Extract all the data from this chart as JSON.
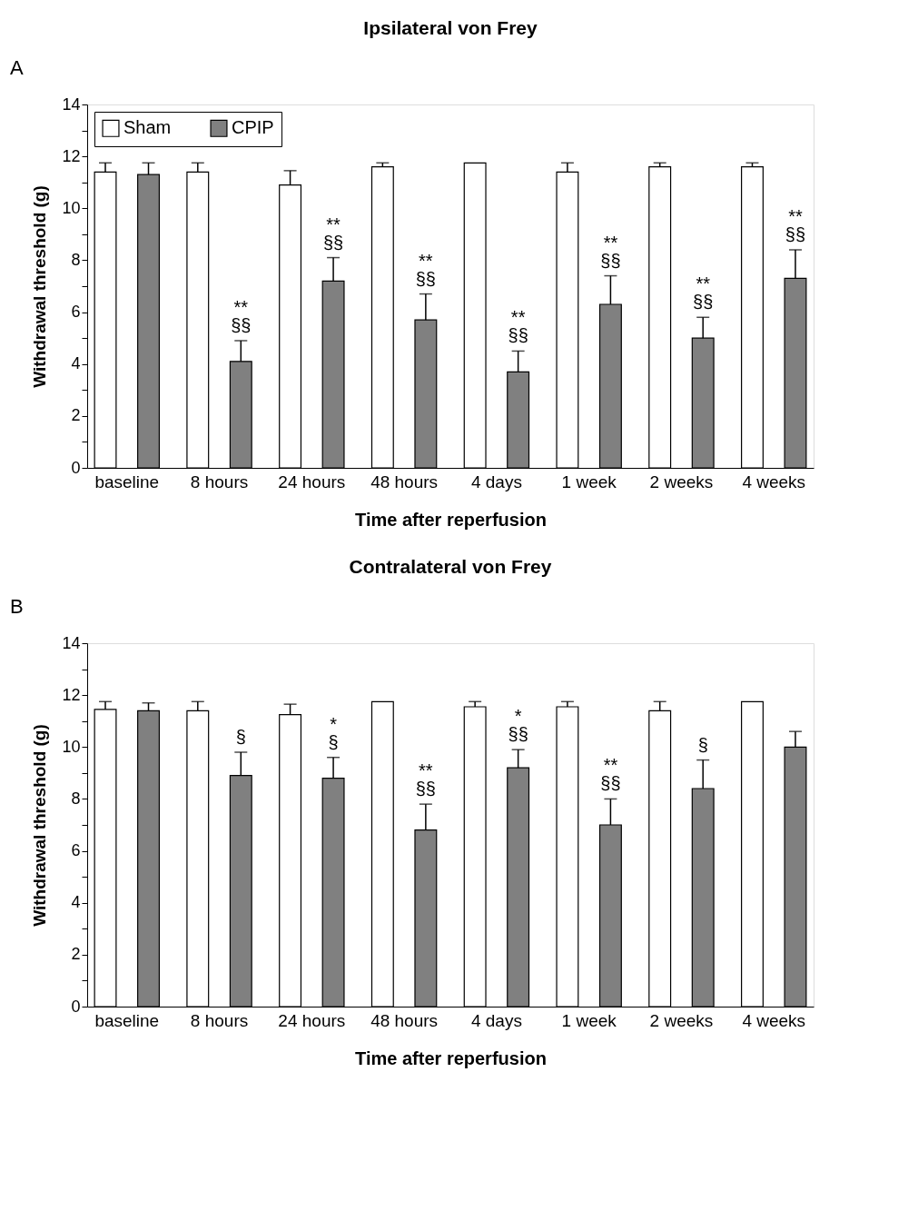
{
  "chart_data": [
    {
      "type": "bar",
      "title": "Ipsilateral von Frey",
      "xlabel": "Time after reperfusion",
      "ylabel": "Withdrawal threshold (g)",
      "categories": [
        "baseline",
        "8 hours",
        "24 hours",
        "48 hours",
        "4 days",
        "1 week",
        "2 weeks",
        "4 weeks"
      ],
      "series": [
        {
          "name": "Sham",
          "color": "#ffffff",
          "values": [
            11.4,
            11.4,
            10.9,
            11.6,
            11.75,
            11.4,
            11.6,
            11.6
          ],
          "errors": [
            [
              11.4,
              11.75
            ],
            [
              11.4,
              11.75
            ],
            [
              10.9,
              11.45
            ],
            [
              11.6,
              11.75
            ],
            null,
            [
              11.4,
              11.75
            ],
            [
              11.6,
              11.75
            ],
            [
              11.6,
              11.75
            ]
          ]
        },
        {
          "name": "CPIP",
          "color": "#808080",
          "values": [
            11.3,
            4.1,
            7.2,
            5.7,
            3.7,
            6.3,
            5.0,
            7.3
          ],
          "errors": [
            [
              11.3,
              11.75
            ],
            [
              4.1,
              4.9
            ],
            [
              7.2,
              8.1
            ],
            [
              5.7,
              6.7
            ],
            [
              3.7,
              4.5
            ],
            [
              6.3,
              7.4
            ],
            [
              5.0,
              5.8
            ],
            [
              7.3,
              8.4
            ]
          ],
          "value_labels": [
            null,
            "**\n§§",
            "**\n§§",
            "**\n§§",
            "**\n§§",
            "**\n§§",
            "**\n§§",
            "**\n§§"
          ]
        }
      ],
      "ylim": [
        0,
        14
      ],
      "yticks": [
        0,
        {
          "value": 1,
          "label": null
        },
        2,
        {
          "value": 3,
          "label": null
        },
        4,
        {
          "value": 5,
          "label": null
        },
        6,
        {
          "value": 7,
          "label": null
        },
        8,
        {
          "value": 9,
          "label": null
        },
        10,
        {
          "value": 11,
          "label": null
        },
        12,
        {
          "value": 13,
          "label": null
        },
        14
      ],
      "grid": false,
      "legend": "top left",
      "annotations": [
        "A"
      ]
    },
    {
      "type": "bar",
      "title": "Contralateral von Frey",
      "xlabel": "Time after reperfusion",
      "ylabel": "Withdrawal threshold (g)",
      "categories": [
        "baseline",
        "8 hours",
        "24 hours",
        "48 hours",
        "4 days",
        "1 week",
        "2 weeks",
        "4 weeks"
      ],
      "series": [
        {
          "name": "Sham",
          "color": "#ffffff",
          "values": [
            11.45,
            11.4,
            11.25,
            11.75,
            11.55,
            11.55,
            11.4,
            11.75
          ],
          "errors": [
            [
              11.45,
              11.75
            ],
            [
              11.4,
              11.75
            ],
            [
              11.25,
              11.65
            ],
            null,
            [
              11.55,
              11.75
            ],
            [
              11.55,
              11.75
            ],
            [
              11.4,
              11.75
            ],
            null
          ]
        },
        {
          "name": "CPIP",
          "color": "#808080",
          "values": [
            11.4,
            8.9,
            8.8,
            6.8,
            9.2,
            7.0,
            8.4,
            10.0
          ],
          "errors": [
            [
              11.4,
              11.7
            ],
            [
              8.9,
              9.8
            ],
            [
              8.8,
              9.6
            ],
            [
              6.8,
              7.8
            ],
            [
              9.2,
              9.9
            ],
            [
              7.0,
              8.0
            ],
            [
              8.4,
              9.5
            ],
            [
              10.0,
              10.6
            ]
          ],
          "value_labels": [
            null,
            "§",
            "*\n§",
            "**\n§§",
            "*\n§§",
            "**\n§§",
            "§",
            null
          ]
        }
      ],
      "ylim": [
        0,
        14
      ],
      "yticks": [
        0,
        {
          "value": 1,
          "label": null
        },
        2,
        {
          "value": 3,
          "label": null
        },
        4,
        {
          "value": 5,
          "label": null
        },
        6,
        {
          "value": 7,
          "label": null
        },
        8,
        {
          "value": 9,
          "label": null
        },
        10,
        {
          "value": 11,
          "label": null
        },
        12,
        {
          "value": 13,
          "label": null
        },
        14
      ],
      "grid": false,
      "legend": "top left",
      "annotations": [
        "B"
      ]
    }
  ]
}
